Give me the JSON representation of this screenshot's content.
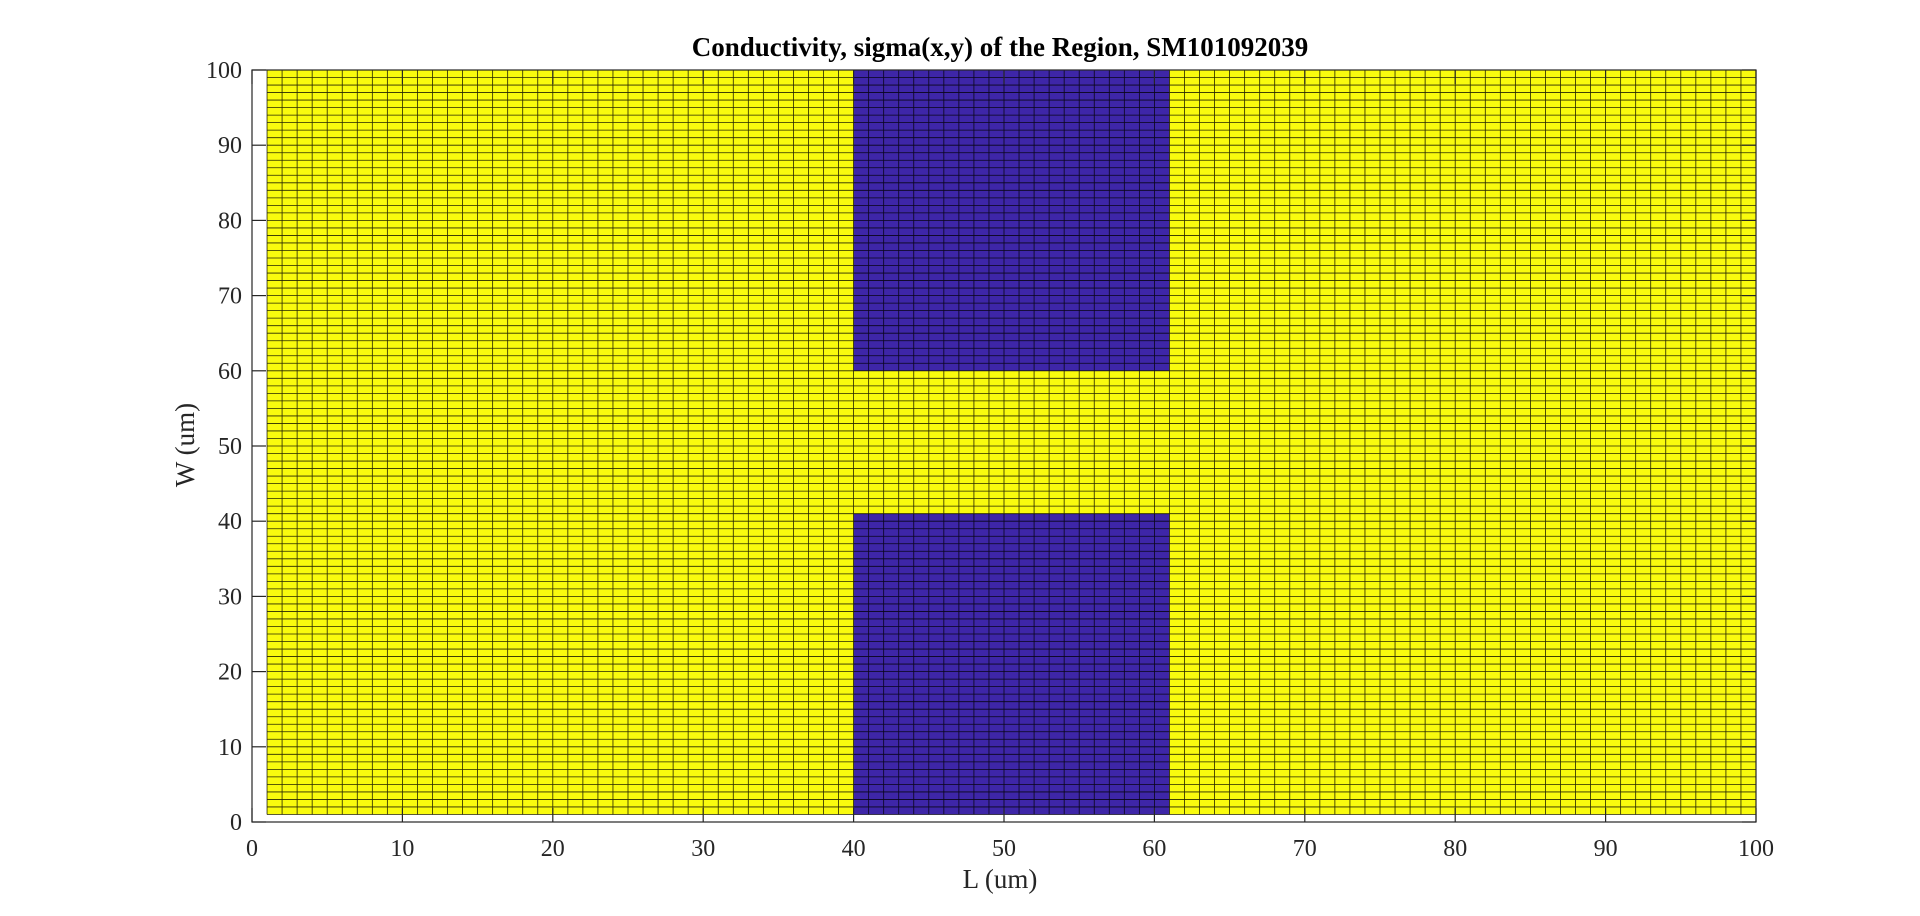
{
  "chart_data": {
    "type": "heatmap",
    "title": "Conductivity, sigma(x,y) of the Region, SM101092039",
    "xlabel": "L (um)",
    "ylabel": "W (um)",
    "xlim": [
      0,
      100
    ],
    "ylim": [
      0,
      100
    ],
    "xticks": [
      "0",
      "10",
      "20",
      "30",
      "40",
      "50",
      "60",
      "70",
      "80",
      "90",
      "100"
    ],
    "yticks": [
      "0",
      "10",
      "20",
      "30",
      "40",
      "50",
      "60",
      "70",
      "80",
      "90",
      "100"
    ],
    "grid_x_range": [
      1,
      100
    ],
    "grid_y_range": [
      1,
      100
    ],
    "grid_step": 1,
    "background_value": 1,
    "colormap": {
      "high": "#F9FB0E",
      "low": "#3E26A8"
    },
    "cell_edge_color": "#000000",
    "regions": [
      {
        "name": "low conductivity box (top)",
        "x_range": [
          40,
          61
        ],
        "y_range": [
          60,
          100
        ],
        "value": 0.01
      },
      {
        "name": "low conductivity box (bottom)",
        "x_range": [
          40,
          61
        ],
        "y_range": [
          1,
          41
        ],
        "value": 0.01
      }
    ]
  }
}
